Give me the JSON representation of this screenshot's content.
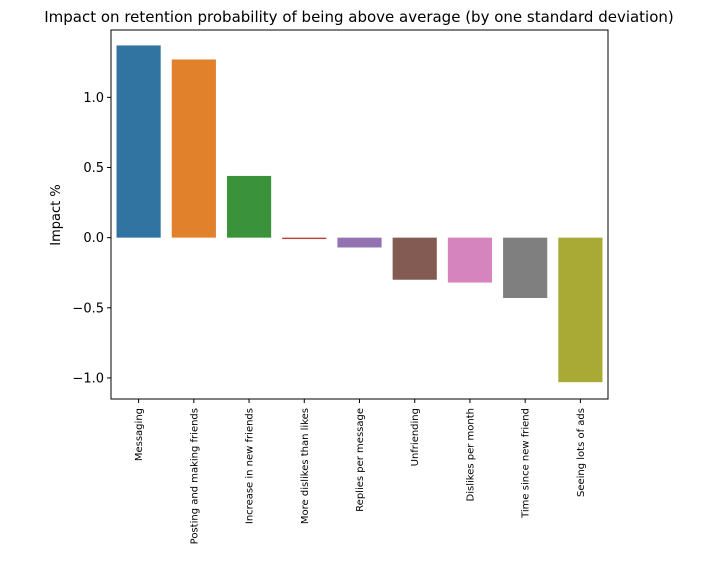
{
  "chart_data": {
    "type": "bar",
    "title": "Impact on retention probability of being above average (by one standard deviation)",
    "xlabel": "",
    "ylabel": "Impact %",
    "ylim": [
      -1.15,
      1.48
    ],
    "yticks": [
      1.0,
      0.5,
      0.0,
      -0.5,
      -1.0
    ],
    "ytick_labels": [
      "1.0",
      "0.5",
      "0.0",
      "−0.5",
      "−1.0"
    ],
    "grid": false,
    "categories": [
      "Messaging",
      "Posting and making friends",
      "Increase in new friends",
      "More dislikes than likes",
      "Replies per message",
      "Unfriending",
      "Dislikes per month",
      "Time since new friend",
      "Seeing lots of ads"
    ],
    "values": [
      1.37,
      1.27,
      0.44,
      -0.01,
      -0.07,
      -0.3,
      -0.32,
      -0.43,
      -1.03
    ],
    "colors": [
      "#3274a1",
      "#e1812c",
      "#3a923a",
      "#c03d3e",
      "#9372b2",
      "#845b53",
      "#d684bd",
      "#7f7f7f",
      "#a9aa35"
    ]
  }
}
